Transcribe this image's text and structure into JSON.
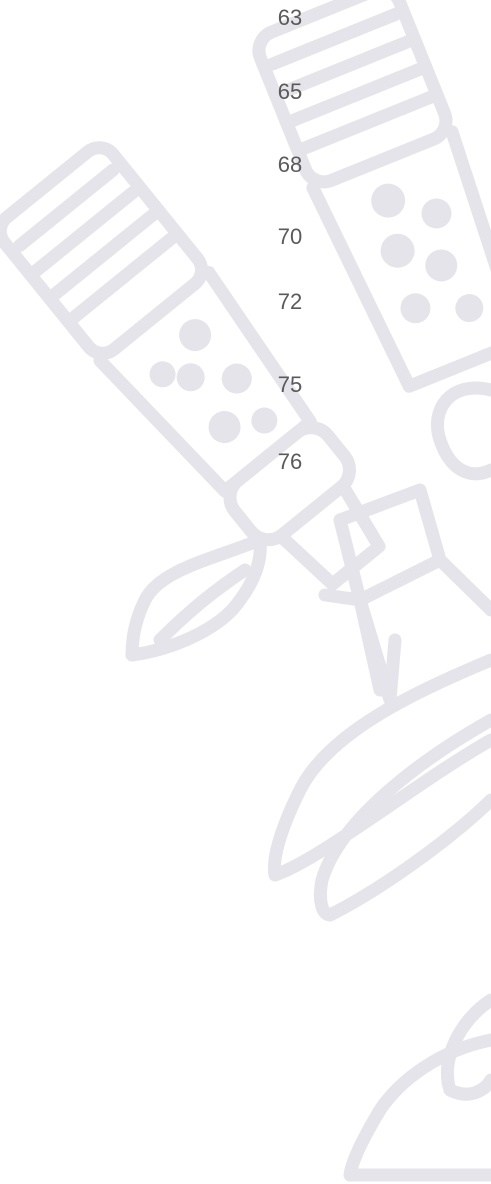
{
  "list": {
    "items": [
      63,
      65,
      68,
      70,
      72,
      75,
      76
    ]
  }
}
